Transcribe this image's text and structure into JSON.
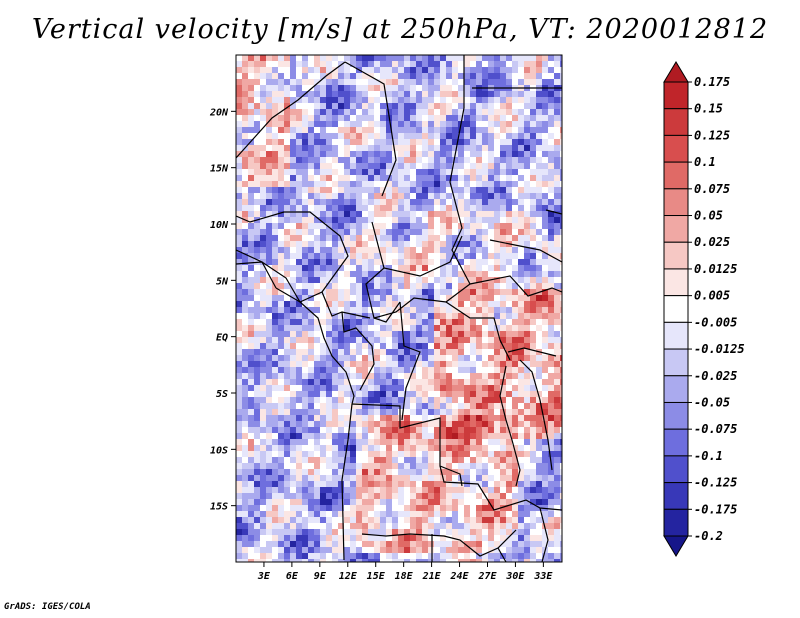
{
  "title": "Vertical velocity [m/s] at 250hPa, VT: 2020012812",
  "credit": "GrADS: IGES/COLA",
  "map": {
    "variable": "Vertical velocity",
    "units": "m/s",
    "level": "250hPa",
    "valid_time": "2020012812",
    "lon_labels": [
      "3E",
      "6E",
      "9E",
      "12E",
      "15E",
      "18E",
      "21E",
      "24E",
      "27E",
      "30E",
      "33E"
    ],
    "lat_labels": [
      "20N",
      "15N",
      "10N",
      "5N",
      "EQ",
      "5S",
      "10S",
      "15S"
    ],
    "lon_range": [
      0,
      35
    ],
    "lat_range": [
      -20,
      25
    ]
  },
  "colorbar": {
    "labels": [
      "0.175",
      "0.15",
      "0.125",
      "0.1",
      "0.075",
      "0.05",
      "0.025",
      "0.0125",
      "0.005",
      "-0.005",
      "-0.0125",
      "-0.025",
      "-0.05",
      "-0.075",
      "-0.1",
      "-0.125",
      "-0.175",
      "-0.2"
    ],
    "colors": [
      "#b01b22",
      "#c0252a",
      "#cc3a3c",
      "#d84e4e",
      "#e06a66",
      "#e88a86",
      "#f0a8a4",
      "#f6c8c4",
      "#fbe6e4",
      "#ffffff",
      "#e6e6fb",
      "#c8c8f4",
      "#aaaaee",
      "#8c8ce6",
      "#6e6ede",
      "#5050cc",
      "#3838b8",
      "#2424a0",
      "#16168a"
    ]
  }
}
